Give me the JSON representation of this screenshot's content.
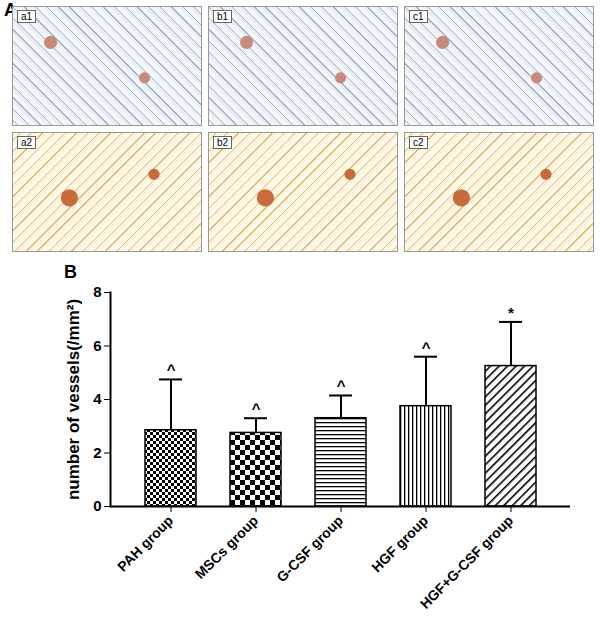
{
  "figure": {
    "panel_labels": [
      "A",
      "B"
    ],
    "image_labels": [
      "a1",
      "b1",
      "c1",
      "a2",
      "b2",
      "c2"
    ]
  },
  "chart_data": {
    "type": "bar",
    "y_label": "number of vessels(/mm²)",
    "categories": [
      "PAH group",
      "MSCs group",
      "G-CSF group",
      "HGF group",
      "HGF+G-CSF group"
    ],
    "values": [
      2.85,
      2.75,
      3.3,
      3.75,
      5.25
    ],
    "errors": [
      1.9,
      0.55,
      0.85,
      1.85,
      1.65
    ],
    "annotations": [
      "^",
      "^",
      "^",
      "^",
      "*"
    ],
    "color": "#000000",
    "ylim": [
      0,
      8
    ],
    "yticks": [
      0,
      2,
      4,
      6,
      8
    ],
    "grid": false
  }
}
